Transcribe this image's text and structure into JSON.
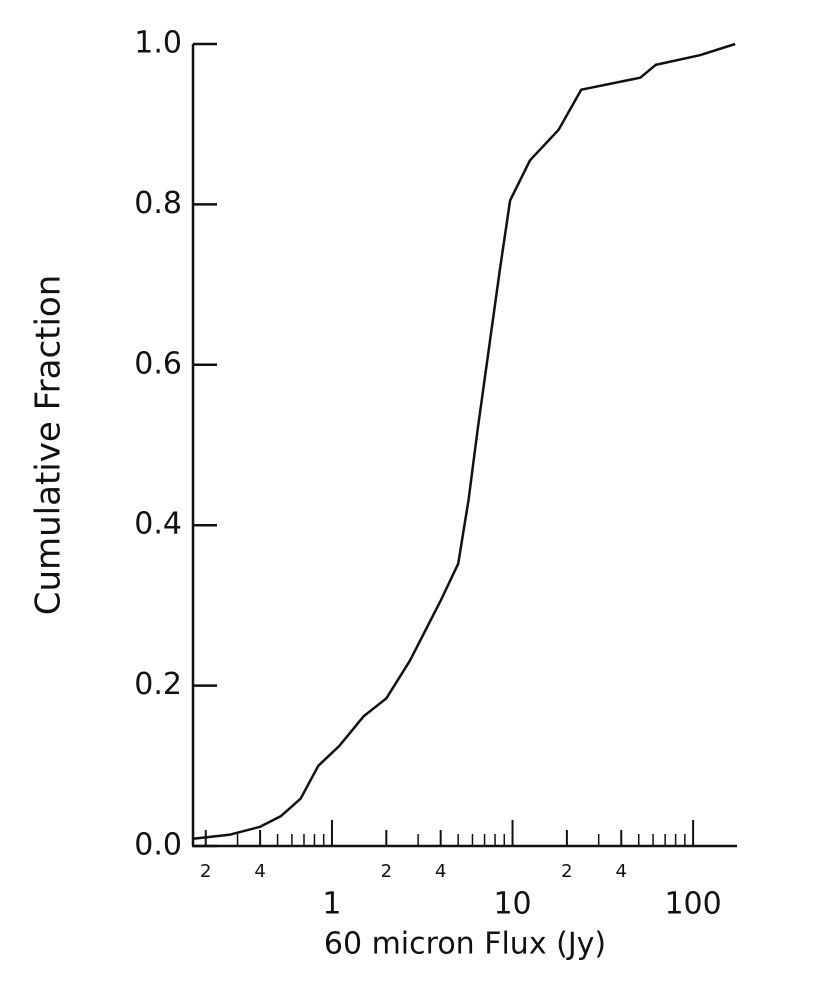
{
  "chart_data": {
    "type": "line",
    "x_label": "60 micron Flux (Jy)",
    "y_label": "Cumulative Fraction",
    "xscale": "log",
    "xlim": [
      0.17,
      175
    ],
    "ylim": [
      0,
      1
    ],
    "xticks": [
      {
        "value": 0.2,
        "label": "2"
      },
      {
        "value": 0.4,
        "label": "4"
      },
      1,
      2,
      4,
      10,
      {
        "value": 20,
        "label": "2"
      },
      {
        "value": 40,
        "label": "4"
      },
      100
    ],
    "xminorticks": [
      0.3,
      0.5,
      0.6,
      0.7,
      0.8,
      0.9,
      3,
      5,
      6,
      7,
      8,
      9,
      30,
      50,
      60,
      70,
      80,
      90
    ],
    "yticks": [
      {
        "value": 0,
        "label": "0.0"
      },
      0.2,
      0.4,
      0.6,
      0.8,
      {
        "value": 1,
        "label": "1.0"
      }
    ],
    "color": "#111111",
    "x": [
      0.17,
      0.27,
      0.4,
      0.52,
      0.67,
      0.84,
      1.1,
      1.5,
      2.0,
      2.7,
      4.0,
      5.0,
      5.7,
      6.4,
      7.5,
      8.5,
      9.7,
      12.5,
      18,
      24,
      51,
      62,
      109,
      171
    ],
    "values": [
      0.009,
      0.014,
      0.024,
      0.037,
      0.059,
      0.1,
      0.125,
      0.162,
      0.184,
      0.231,
      0.306,
      0.352,
      0.431,
      0.518,
      0.63,
      0.718,
      0.805,
      0.855,
      0.893,
      0.943,
      0.958,
      0.974,
      0.986,
      1.0
    ]
  }
}
